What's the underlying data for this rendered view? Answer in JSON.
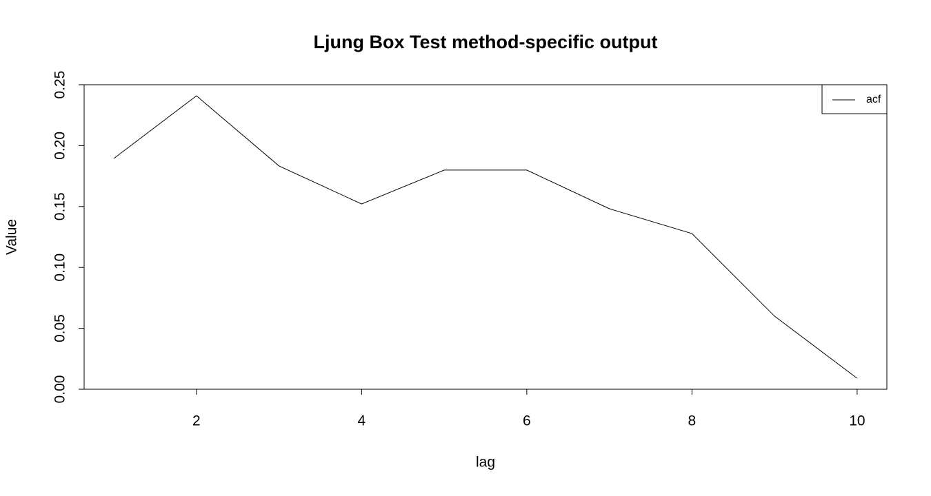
{
  "chart_data": {
    "type": "line",
    "title": "Ljung Box Test method-specific output",
    "x_label": "lag",
    "y_label": "Value",
    "x": [
      1,
      2,
      3,
      4,
      5,
      6,
      7,
      8,
      9,
      10
    ],
    "series": [
      {
        "name": "acf",
        "color": "#000000",
        "values": [
          0.1895,
          0.2409,
          0.1833,
          0.1521,
          0.1799,
          0.1799,
          0.1482,
          0.1278,
          0.06,
          0.009
        ]
      }
    ],
    "xlim": [
      0.64,
      10.36
    ],
    "xticks": [
      2,
      4,
      6,
      8,
      10
    ],
    "ylim": [
      0,
      0.25
    ],
    "yticks": [
      {
        "value": 0,
        "label": "0.00"
      },
      0.05,
      {
        "value": 0.1,
        "label": "0.10"
      },
      0.15,
      {
        "value": 0.2,
        "label": "0.20"
      },
      0.25
    ],
    "legend": "top-right"
  }
}
